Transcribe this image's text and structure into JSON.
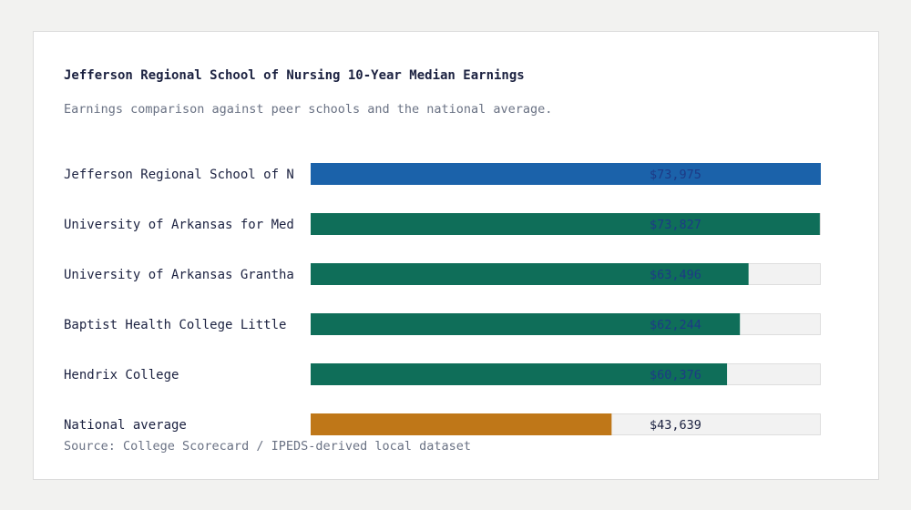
{
  "title": "Jefferson Regional School of Nursing 10-Year Median Earnings",
  "subtitle": "Earnings comparison against peer schools and the national average.",
  "source": "Source: College Scorecard / IPEDS-derived local dataset",
  "colors": {
    "highlight": "#1b62aa",
    "peer": "#0f6e59",
    "national": "#bf7718",
    "track": "#f2f2f2",
    "track_border": "#dedede",
    "value_on_bar": "#1d3a86",
    "value_on_track": "#1b2140"
  },
  "chart_data": {
    "type": "bar",
    "orientation": "horizontal",
    "title": "Jefferson Regional School of Nursing 10-Year Median Earnings",
    "subtitle": "Earnings comparison against peer schools and the national average.",
    "xlabel": "",
    "ylabel": "",
    "xlim": [
      0,
      73975
    ],
    "grid": false,
    "legend": "none",
    "categories": [
      "Jefferson Regional School of N",
      "University of Arkansas for Med",
      "University of Arkansas Grantha",
      "Baptist Health College Little",
      "Hendrix College",
      "National average"
    ],
    "values": [
      73975,
      73827,
      63496,
      62244,
      60376,
      43639
    ],
    "value_labels": [
      "$73,975",
      "$73,827",
      "$63,496",
      "$62,244",
      "$60,376",
      "$43,639"
    ],
    "bar_roles": [
      "highlight",
      "peer",
      "peer",
      "peer",
      "peer",
      "national"
    ]
  }
}
